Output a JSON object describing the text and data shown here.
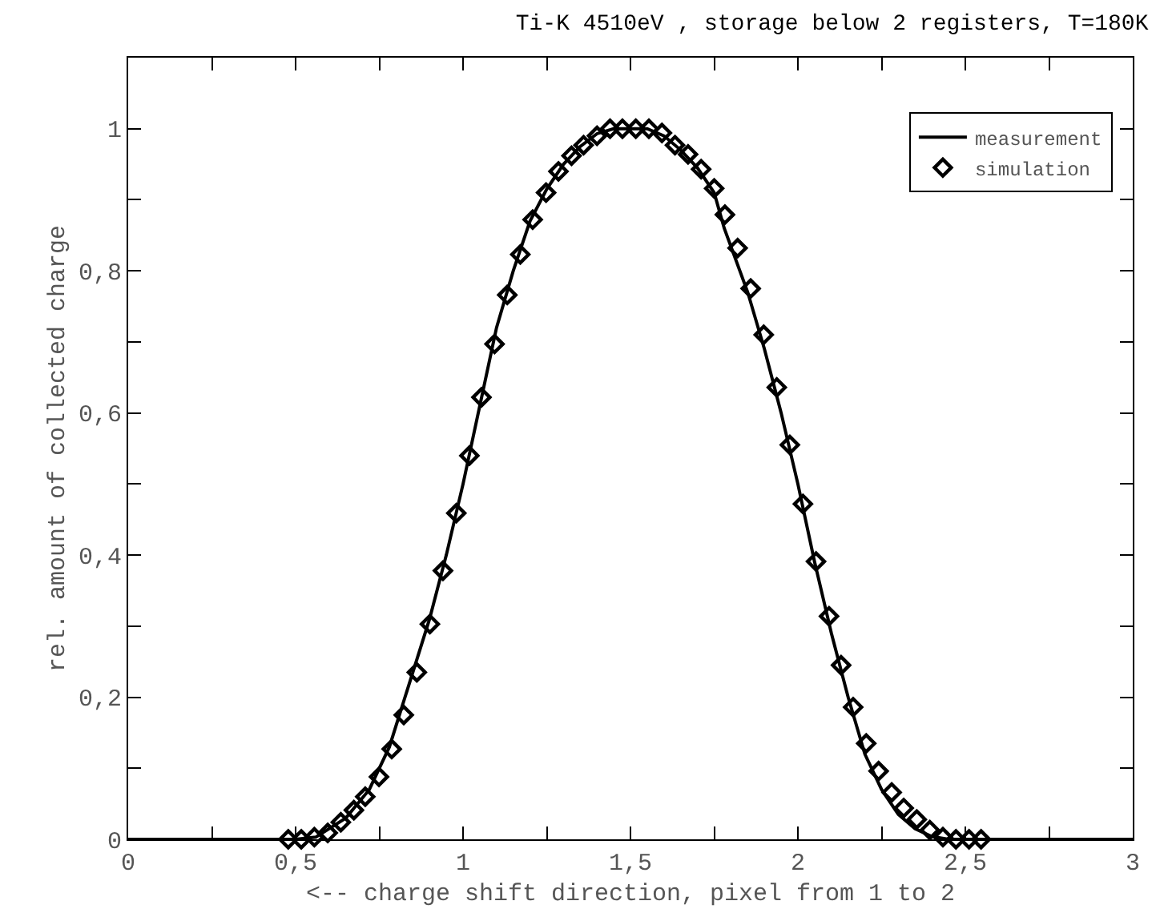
{
  "chart_data": {
    "type": "line",
    "title": "Ti-K 4510eV , storage below 2 registers, T=180K",
    "xlabel": "<-- charge shift direction, pixel from 1 to 2",
    "ylabel": "rel. amount of collected charge",
    "xlim": [
      0,
      3
    ],
    "ylim": [
      0,
      1.1
    ],
    "xticks": [
      0,
      {
        "value": 0.25,
        "label": null
      },
      {
        "value": 0.5,
        "label": "0,5"
      },
      {
        "value": 0.75,
        "label": null
      },
      1,
      {
        "value": 1.25,
        "label": null
      },
      {
        "value": 1.5,
        "label": "1,5"
      },
      {
        "value": 1.75,
        "label": null
      },
      2,
      {
        "value": 2.25,
        "label": null
      },
      {
        "value": 2.5,
        "label": "2,5"
      },
      {
        "value": 2.75,
        "label": null
      },
      3
    ],
    "yticks": [
      0,
      {
        "value": 0.1,
        "label": null
      },
      {
        "value": 0.2,
        "label": "0,2"
      },
      {
        "value": 0.3,
        "label": null
      },
      {
        "value": 0.4,
        "label": "0,4"
      },
      {
        "value": 0.5,
        "label": null
      },
      {
        "value": 0.6,
        "label": "0,6"
      },
      {
        "value": 0.7,
        "label": null
      },
      {
        "value": 0.8,
        "label": "0,8"
      },
      {
        "value": 0.9,
        "label": null
      },
      1
    ],
    "grid": false,
    "legend": "top right",
    "series": [
      {
        "name": "measurement",
        "color": "#000000",
        "marker": "none",
        "line_style": "solid",
        "x": [
          0,
          0.5,
          0.56,
          0.65,
          0.72,
          0.78,
          0.84,
          0.9,
          0.95,
          1.0,
          1.05,
          1.1,
          1.15,
          1.2,
          1.25,
          1.3,
          1.35,
          1.4,
          1.45,
          1.55,
          1.6,
          1.65,
          1.7,
          1.75,
          1.78,
          1.85,
          1.9,
          1.95,
          2.0,
          2.05,
          2.1,
          2.15,
          2.2,
          2.25,
          2.3,
          2.35,
          2.4,
          2.45,
          3
        ],
        "values": [
          0,
          0,
          0.003,
          0.03,
          0.07,
          0.13,
          0.22,
          0.31,
          0.4,
          0.5,
          0.61,
          0.72,
          0.8,
          0.87,
          0.915,
          0.95,
          0.975,
          0.993,
          1.0,
          1.0,
          0.99,
          0.97,
          0.945,
          0.91,
          0.86,
          0.77,
          0.69,
          0.6,
          0.5,
          0.39,
          0.29,
          0.2,
          0.12,
          0.07,
          0.035,
          0.015,
          0.004,
          0,
          0
        ]
      },
      {
        "name": "simulation",
        "type": "scatter",
        "color": "#000000",
        "marker": "diamond",
        "x": [
          0.478,
          0.517,
          0.556,
          0.596,
          0.635,
          0.674,
          0.708,
          0.749,
          0.787,
          0.823,
          0.862,
          0.901,
          0.94,
          0.98,
          1.019,
          1.055,
          1.094,
          1.132,
          1.171,
          1.208,
          1.248,
          1.285,
          1.324,
          1.36,
          1.4,
          1.439,
          1.476,
          1.516,
          1.555,
          1.594,
          1.633,
          1.672,
          1.711,
          1.75,
          1.782,
          1.82,
          1.859,
          1.898,
          1.937,
          1.976,
          2.015,
          2.054,
          2.093,
          2.129,
          2.165,
          2.204,
          2.241,
          2.28,
          2.316,
          2.355,
          2.394,
          2.433,
          2.472,
          2.511,
          2.547
        ],
        "values": [
          0,
          0,
          0.003,
          0.009,
          0.024,
          0.041,
          0.06,
          0.088,
          0.127,
          0.175,
          0.235,
          0.303,
          0.378,
          0.459,
          0.54,
          0.622,
          0.697,
          0.766,
          0.823,
          0.872,
          0.91,
          0.94,
          0.962,
          0.977,
          0.99,
          1.0,
          1.0,
          1.0,
          1.0,
          0.994,
          0.977,
          0.964,
          0.943,
          0.916,
          0.879,
          0.832,
          0.775,
          0.71,
          0.636,
          0.555,
          0.472,
          0.391,
          0.314,
          0.245,
          0.186,
          0.135,
          0.096,
          0.066,
          0.044,
          0.028,
          0.013,
          0.003,
          0,
          0,
          0
        ]
      }
    ]
  }
}
